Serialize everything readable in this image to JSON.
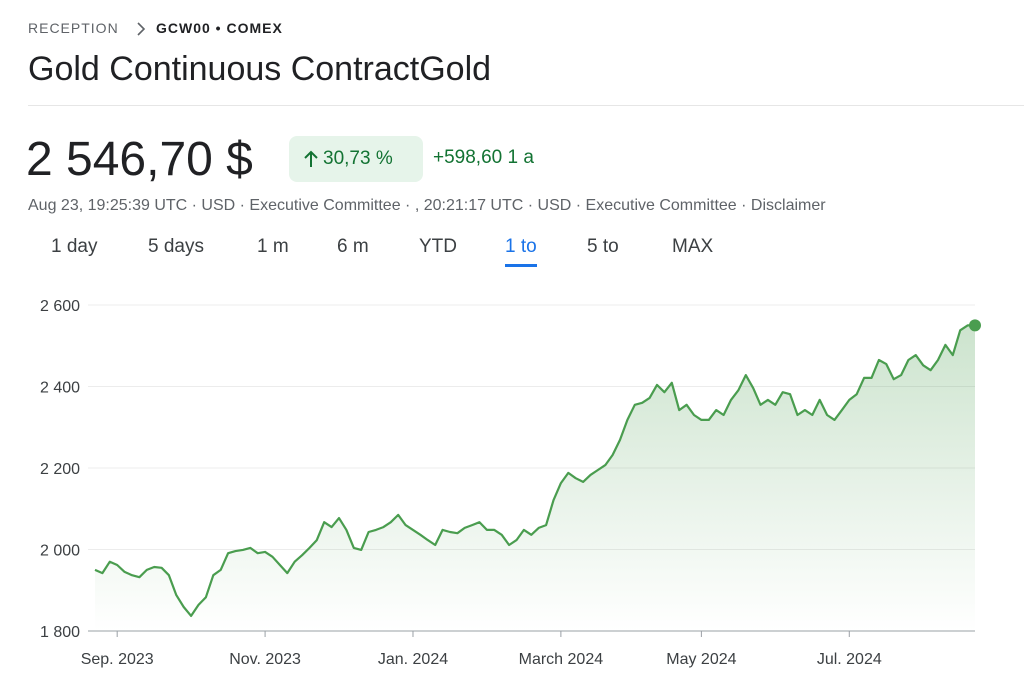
{
  "header": {
    "breadcrumb": [
      "RECEPTION",
      "GCW00 • COMEX"
    ],
    "title": "Gold Continuous ContractGold",
    "price": "2 546,70 $",
    "change_percent": "30,73 %",
    "change_abs": "+598,60 1 a",
    "timestamp": "Aug 23, 19:25:39 UTC · USD · Executive Committee · , 20:21:17 UTC · USD · Executive Committee · Disclaimer",
    "tabs": [
      "1 day",
      "5 days",
      "1 m",
      "6 m",
      "YTD",
      "1 to",
      "5 to",
      "MAX"
    ],
    "selected_tab": 5
  },
  "chart_data": {
    "type": "line",
    "color": "#4a9d4f",
    "categories": [
      null,
      null,
      null,
      "Sep. 2023",
      null,
      null,
      null,
      null,
      null,
      null,
      null,
      null,
      null,
      null,
      null,
      null,
      null,
      null,
      null,
      null,
      null,
      null,
      null,
      "Nov. 2023",
      null,
      null,
      null,
      null,
      null,
      null,
      null,
      null,
      null,
      null,
      null,
      null,
      null,
      null,
      null,
      null,
      null,
      null,
      null,
      "Jan. 2024",
      null,
      null,
      null,
      null,
      null,
      null,
      null,
      null,
      null,
      null,
      null,
      null,
      null,
      null,
      null,
      null,
      null,
      null,
      null,
      "March 2024",
      null,
      null,
      null,
      null,
      null,
      null,
      null,
      null,
      null,
      null,
      null,
      null,
      null,
      null,
      null,
      null,
      null,
      null,
      "May 2024",
      null,
      null,
      null,
      null,
      null,
      null,
      null,
      null,
      null,
      null,
      null,
      null,
      null,
      null,
      null,
      null,
      null,
      null,
      null,
      "Jul. 2024",
      null,
      null,
      null,
      null,
      null,
      null,
      null,
      null,
      null,
      null,
      null,
      null,
      null,
      null,
      null,
      null,
      null
    ],
    "values": [
      1950,
      1942,
      1970,
      1962,
      1945,
      1937,
      1932,
      1950,
      1957,
      1955,
      1937,
      1888,
      1859,
      1837,
      1864,
      1883,
      1937,
      1950,
      1991,
      1996,
      1999,
      2004,
      1991,
      1994,
      1982,
      1962,
      1942,
      1970,
      1986,
      2004,
      2023,
      2067,
      2055,
      2077,
      2048,
      2004,
      1999,
      2043,
      2048,
      2055,
      2067,
      2085,
      2060,
      2048,
      2036,
      2023,
      2011,
      2048,
      2043,
      2040,
      2053,
      2060,
      2067,
      2048,
      2048,
      2036,
      2011,
      2023,
      2048,
      2036,
      2053,
      2060,
      2121,
      2163,
      2188,
      2175,
      2166,
      2183,
      2195,
      2207,
      2232,
      2269,
      2318,
      2355,
      2360,
      2372,
      2404,
      2386,
      2409,
      2342,
      2355,
      2330,
      2318,
      2318,
      2342,
      2330,
      2367,
      2391,
      2428,
      2396,
      2355,
      2367,
      2355,
      2386,
      2381,
      2330,
      2342,
      2330,
      2367,
      2330,
      2318,
      2342,
      2367,
      2381,
      2421,
      2421,
      2465,
      2455,
      2418,
      2428,
      2465,
      2477,
      2452,
      2440,
      2465,
      2502,
      2477,
      2538,
      2550,
      2550
    ],
    "ylim": [
      1800,
      2600
    ],
    "yticks": [
      {
        "value": 1800,
        "label": "1 800"
      },
      {
        "value": 2000,
        "label": "2 000"
      },
      {
        "value": 2200,
        "label": "2 200"
      },
      {
        "value": 2400,
        "label": "2 400"
      },
      {
        "value": 2600,
        "label": "2 600"
      }
    ],
    "grid": true
  }
}
